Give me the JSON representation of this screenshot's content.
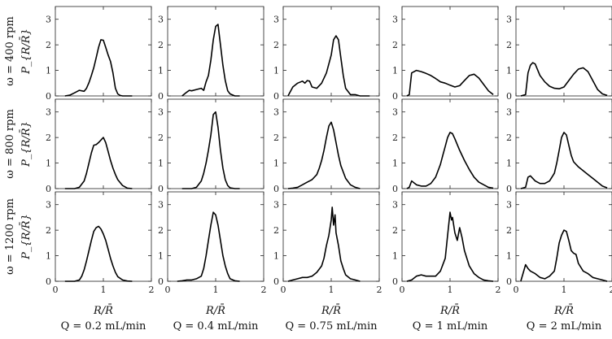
{
  "figure": {
    "row_labels": [
      "ω = 400 rpm",
      "ω = 800 rpm",
      "ω = 1200 rpm"
    ],
    "col_labels": [
      "Q = 0.2 mL/min",
      "Q = 0.4 mL/min",
      "Q = 0.75 mL/min",
      "Q = 1 mL/min",
      "Q = 2 mL/min"
    ],
    "ylabel": "P_{R/R̄}",
    "xlabel": "R/R̄",
    "xticks": [
      "0",
      "1",
      "2"
    ],
    "yticks": [
      "0",
      "1",
      "2",
      "3"
    ],
    "line_color": "#000000"
  },
  "chart_data": {
    "type": "line",
    "layout": "grid 3 rows x 5 columns (small multiples)",
    "xlim": [
      0,
      2
    ],
    "ylim": [
      0,
      3.5
    ],
    "grid": false,
    "panels": [
      {
        "row": 0,
        "col": 0,
        "x": [
          0.2,
          0.3,
          0.4,
          0.5,
          0.6,
          0.65,
          0.7,
          0.75,
          0.8,
          0.85,
          0.9,
          0.95,
          1.0,
          1.05,
          1.1,
          1.15,
          1.2,
          1.25,
          1.3,
          1.35,
          1.4,
          1.5,
          1.6
        ],
        "y": [
          0,
          0.03,
          0.12,
          0.22,
          0.18,
          0.3,
          0.52,
          0.8,
          1.1,
          1.5,
          1.9,
          2.2,
          2.18,
          1.9,
          1.6,
          1.35,
          0.9,
          0.3,
          0.08,
          0.02,
          0,
          0,
          0
        ]
      },
      {
        "row": 0,
        "col": 1,
        "x": [
          0.3,
          0.4,
          0.45,
          0.5,
          0.6,
          0.7,
          0.75,
          0.8,
          0.85,
          0.9,
          0.95,
          1.0,
          1.05,
          1.1,
          1.15,
          1.2,
          1.25,
          1.3,
          1.4,
          1.5
        ],
        "y": [
          0,
          0.15,
          0.22,
          0.2,
          0.25,
          0.3,
          0.22,
          0.55,
          0.8,
          1.4,
          2.2,
          2.72,
          2.8,
          2.0,
          1.2,
          0.6,
          0.2,
          0.08,
          0,
          0
        ]
      },
      {
        "row": 0,
        "col": 2,
        "x": [
          0.1,
          0.2,
          0.3,
          0.4,
          0.45,
          0.5,
          0.55,
          0.6,
          0.7,
          0.8,
          0.9,
          1.0,
          1.05,
          1.1,
          1.15,
          1.2,
          1.25,
          1.3,
          1.4,
          1.5,
          1.6,
          1.8
        ],
        "y": [
          0,
          0.35,
          0.5,
          0.58,
          0.5,
          0.6,
          0.58,
          0.35,
          0.3,
          0.5,
          0.9,
          1.6,
          2.2,
          2.35,
          2.2,
          1.5,
          0.8,
          0.3,
          0.05,
          0.05,
          0,
          0
        ]
      },
      {
        "row": 0,
        "col": 3,
        "x": [
          0.1,
          0.15,
          0.2,
          0.3,
          0.4,
          0.5,
          0.6,
          0.7,
          0.8,
          0.9,
          1.0,
          1.1,
          1.2,
          1.3,
          1.4,
          1.5,
          1.6,
          1.7,
          1.8,
          1.9
        ],
        "y": [
          0,
          0.05,
          0.9,
          1.0,
          0.95,
          0.88,
          0.8,
          0.68,
          0.55,
          0.5,
          0.42,
          0.35,
          0.4,
          0.6,
          0.8,
          0.85,
          0.7,
          0.45,
          0.2,
          0.05
        ]
      },
      {
        "row": 0,
        "col": 4,
        "x": [
          0.1,
          0.2,
          0.25,
          0.3,
          0.35,
          0.4,
          0.5,
          0.6,
          0.7,
          0.8,
          0.9,
          1.0,
          1.1,
          1.2,
          1.3,
          1.4,
          1.5,
          1.6,
          1.7,
          1.8,
          1.9
        ],
        "y": [
          0,
          0.05,
          0.9,
          1.2,
          1.3,
          1.25,
          0.8,
          0.55,
          0.38,
          0.3,
          0.28,
          0.35,
          0.6,
          0.85,
          1.05,
          1.1,
          0.95,
          0.6,
          0.25,
          0.08,
          0.02
        ]
      },
      {
        "row": 1,
        "col": 0,
        "x": [
          0.2,
          0.4,
          0.5,
          0.6,
          0.65,
          0.7,
          0.75,
          0.8,
          0.85,
          0.9,
          0.95,
          1.0,
          1.05,
          1.1,
          1.15,
          1.2,
          1.25,
          1.3,
          1.4,
          1.5,
          1.6
        ],
        "y": [
          0,
          0,
          0.05,
          0.3,
          0.6,
          1.0,
          1.4,
          1.7,
          1.72,
          1.8,
          1.9,
          2.0,
          1.8,
          1.45,
          1.1,
          0.8,
          0.55,
          0.35,
          0.12,
          0.02,
          0
        ]
      },
      {
        "row": 1,
        "col": 1,
        "x": [
          0.3,
          0.5,
          0.6,
          0.7,
          0.75,
          0.8,
          0.85,
          0.9,
          0.95,
          1.0,
          1.05,
          1.1,
          1.15,
          1.2,
          1.25,
          1.3,
          1.4,
          1.5
        ],
        "y": [
          0,
          0,
          0.05,
          0.3,
          0.6,
          1.0,
          1.5,
          2.1,
          2.9,
          3.0,
          2.4,
          1.5,
          0.8,
          0.35,
          0.12,
          0.03,
          0,
          0
        ]
      },
      {
        "row": 1,
        "col": 2,
        "x": [
          0.1,
          0.2,
          0.3,
          0.4,
          0.5,
          0.6,
          0.7,
          0.75,
          0.8,
          0.85,
          0.9,
          0.95,
          1.0,
          1.05,
          1.1,
          1.15,
          1.2,
          1.3,
          1.4,
          1.5,
          1.6
        ],
        "y": [
          0,
          0.02,
          0.05,
          0.15,
          0.25,
          0.35,
          0.55,
          0.8,
          1.1,
          1.5,
          2.0,
          2.45,
          2.6,
          2.3,
          1.8,
          1.3,
          0.9,
          0.4,
          0.15,
          0.05,
          0
        ]
      },
      {
        "row": 1,
        "col": 3,
        "x": [
          0.1,
          0.15,
          0.2,
          0.3,
          0.4,
          0.5,
          0.6,
          0.7,
          0.8,
          0.85,
          0.9,
          0.95,
          1.0,
          1.05,
          1.1,
          1.2,
          1.3,
          1.4,
          1.5,
          1.6,
          1.8,
          1.9
        ],
        "y": [
          0,
          0.05,
          0.3,
          0.15,
          0.1,
          0.1,
          0.2,
          0.45,
          0.95,
          1.3,
          1.65,
          2.0,
          2.2,
          2.15,
          1.95,
          1.5,
          1.1,
          0.75,
          0.45,
          0.25,
          0.05,
          0.02
        ]
      },
      {
        "row": 1,
        "col": 4,
        "x": [
          0.1,
          0.2,
          0.25,
          0.3,
          0.4,
          0.5,
          0.6,
          0.7,
          0.8,
          0.85,
          0.9,
          0.95,
          1.0,
          1.05,
          1.1,
          1.15,
          1.2,
          1.3,
          1.4,
          1.5,
          1.6,
          1.7,
          1.8,
          1.9
        ],
        "y": [
          0,
          0.05,
          0.45,
          0.5,
          0.3,
          0.2,
          0.2,
          0.3,
          0.6,
          1.0,
          1.5,
          2.0,
          2.2,
          2.1,
          1.7,
          1.3,
          1.05,
          0.85,
          0.7,
          0.55,
          0.4,
          0.25,
          0.1,
          0.03
        ]
      },
      {
        "row": 2,
        "col": 0,
        "x": [
          0.2,
          0.4,
          0.5,
          0.55,
          0.6,
          0.65,
          0.7,
          0.75,
          0.8,
          0.85,
          0.9,
          0.95,
          1.0,
          1.05,
          1.1,
          1.15,
          1.2,
          1.25,
          1.3,
          1.4,
          1.5,
          1.6
        ],
        "y": [
          0,
          0,
          0.05,
          0.2,
          0.45,
          0.8,
          1.2,
          1.6,
          1.95,
          2.1,
          2.15,
          2.05,
          1.85,
          1.6,
          1.25,
          0.9,
          0.6,
          0.35,
          0.18,
          0.05,
          0.01,
          0
        ]
      },
      {
        "row": 2,
        "col": 1,
        "x": [
          0.2,
          0.3,
          0.4,
          0.5,
          0.6,
          0.7,
          0.75,
          0.8,
          0.85,
          0.9,
          0.95,
          1.0,
          1.05,
          1.1,
          1.15,
          1.2,
          1.25,
          1.3,
          1.4,
          1.5
        ],
        "y": [
          0,
          0.02,
          0.05,
          0.05,
          0.1,
          0.2,
          0.5,
          1.0,
          1.6,
          2.2,
          2.7,
          2.6,
          2.2,
          1.6,
          1.0,
          0.6,
          0.3,
          0.1,
          0.02,
          0
        ]
      },
      {
        "row": 2,
        "col": 2,
        "x": [
          0.1,
          0.2,
          0.3,
          0.4,
          0.5,
          0.6,
          0.7,
          0.8,
          0.85,
          0.9,
          0.95,
          1.0,
          1.02,
          1.05,
          1.08,
          1.1,
          1.15,
          1.2,
          1.25,
          1.3,
          1.4,
          1.5,
          1.6
        ],
        "y": [
          0,
          0.05,
          0.1,
          0.15,
          0.15,
          0.2,
          0.35,
          0.6,
          0.9,
          1.4,
          1.8,
          2.4,
          2.9,
          2.2,
          2.6,
          1.9,
          1.4,
          0.8,
          0.5,
          0.25,
          0.1,
          0.05,
          0
        ]
      },
      {
        "row": 2,
        "col": 3,
        "x": [
          0.1,
          0.2,
          0.3,
          0.4,
          0.5,
          0.6,
          0.7,
          0.8,
          0.9,
          0.95,
          1.0,
          1.03,
          1.05,
          1.1,
          1.15,
          1.2,
          1.25,
          1.3,
          1.4,
          1.5,
          1.6,
          1.7,
          1.8,
          1.9
        ],
        "y": [
          0,
          0.05,
          0.2,
          0.25,
          0.2,
          0.2,
          0.2,
          0.4,
          0.9,
          1.8,
          2.7,
          2.4,
          2.5,
          1.9,
          1.6,
          2.1,
          1.7,
          1.2,
          0.6,
          0.3,
          0.15,
          0.05,
          0.02,
          0
        ]
      },
      {
        "row": 2,
        "col": 4,
        "x": [
          0.1,
          0.2,
          0.25,
          0.3,
          0.4,
          0.5,
          0.6,
          0.7,
          0.8,
          0.85,
          0.9,
          0.95,
          1.0,
          1.05,
          1.1,
          1.15,
          1.2,
          1.25,
          1.3,
          1.4,
          1.5,
          1.6,
          1.7,
          1.8,
          1.9
        ],
        "y": [
          0,
          0.65,
          0.5,
          0.4,
          0.3,
          0.15,
          0.1,
          0.2,
          0.4,
          0.9,
          1.5,
          1.8,
          2.0,
          1.95,
          1.6,
          1.2,
          1.1,
          1.05,
          0.7,
          0.4,
          0.3,
          0.15,
          0.1,
          0.05,
          0
        ]
      }
    ]
  }
}
